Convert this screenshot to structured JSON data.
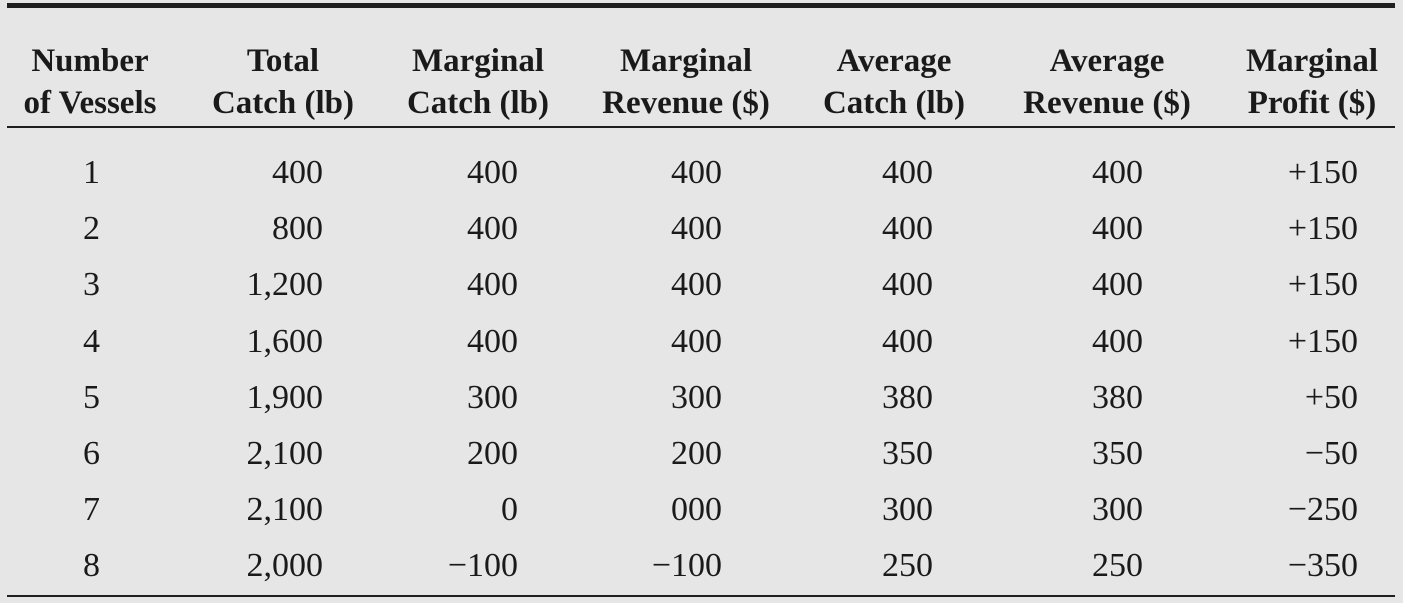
{
  "table": {
    "columns": [
      {
        "line1": "Number",
        "line2": "of Vessels"
      },
      {
        "line1": "Total",
        "line2": "Catch (lb)"
      },
      {
        "line1": "Marginal",
        "line2": "Catch (lb)"
      },
      {
        "line1": "Marginal",
        "line2": "Revenue ($)"
      },
      {
        "line1": "Average",
        "line2": "Catch (lb)"
      },
      {
        "line1": "Average",
        "line2": "Revenue ($)"
      },
      {
        "line1": "Marginal",
        "line2": "Profit ($)"
      }
    ],
    "rows": [
      [
        "1",
        "400",
        "400",
        "400",
        "400",
        "400",
        "+150"
      ],
      [
        "2",
        "800",
        "400",
        "400",
        "400",
        "400",
        "+150"
      ],
      [
        "3",
        "1,200",
        "400",
        "400",
        "400",
        "400",
        "+150"
      ],
      [
        "4",
        "1,600",
        "400",
        "400",
        "400",
        "400",
        "+150"
      ],
      [
        "5",
        "1,900",
        "300",
        "300",
        "380",
        "380",
        "+50"
      ],
      [
        "6",
        "2,100",
        "200",
        "200",
        "350",
        "350",
        "−50"
      ],
      [
        "7",
        "2,100",
        "0",
        "000",
        "300",
        "300",
        "−250"
      ],
      [
        "8",
        "2,000",
        "−100",
        "−100",
        "250",
        "250",
        "−350"
      ]
    ]
  }
}
